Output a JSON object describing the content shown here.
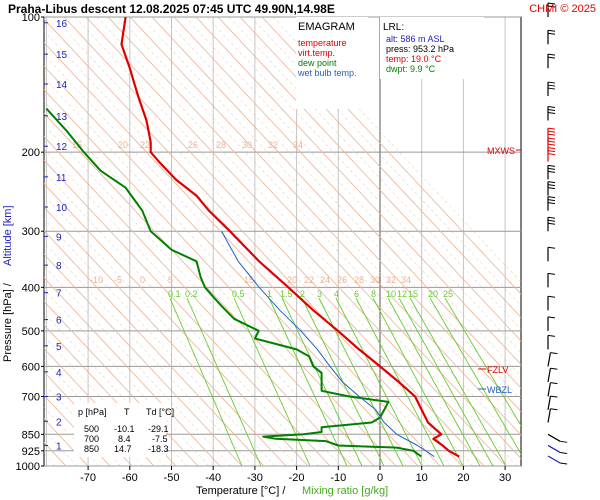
{
  "header": {
    "title": "Praha-Libus   descent   12.08.2025 07:45 UTC  49.90N,14.98E",
    "credit": "CHMI © 2025"
  },
  "legend": {
    "heading": "EMAGRAM",
    "items": [
      {
        "label": "temperature",
        "color": "#e00000"
      },
      {
        "label": "virt.temp.",
        "color": "#e00000"
      },
      {
        "label": "dew point",
        "color": "#008000"
      },
      {
        "label": "wet bulb temp.",
        "color": "#2060c0"
      }
    ]
  },
  "lrl": {
    "heading": "LRL:",
    "alt": "alt: 586 m ASL",
    "press": "press: 953.2 hPa",
    "temp": "temp: 19.0 °C",
    "dwpt": "dwpt: 9.9 °C"
  },
  "levels_table": {
    "headers": [
      "p [hPa]",
      "T",
      "Td [°C]"
    ],
    "rows": [
      [
        "500",
        "-10.1",
        "-29.1"
      ],
      [
        "700",
        "8.4",
        "-7.5"
      ],
      [
        "850",
        "14.7",
        "-18.3"
      ]
    ]
  },
  "markers": {
    "mxws": "MXWS",
    "fzlv": "FZLV",
    "wbzl": "WBZL"
  },
  "axes": {
    "xlabel_temp": "Temperature [°C]  /",
    "xlabel_mix": "Mixing ratio [g/kg]",
    "ylabel_pressure": "Pressure [hPa]  /",
    "ylabel_alt": "Altitude [km]"
  },
  "colors": {
    "temperature": "#e00000",
    "dewpoint": "#008000",
    "wetbulb": "#2060c0",
    "isotherm": "#c4c4c4",
    "dry_adiabat": "#f0b090",
    "mixing_ratio": "#66cc33",
    "altitude": "#2020c0"
  },
  "chart_data": {
    "type": "line",
    "xlim": [
      -80,
      40
    ],
    "ylim_pressure": [
      1000,
      100
    ],
    "pressure_ticks": [
      100,
      200,
      300,
      400,
      500,
      600,
      700,
      850,
      925,
      1000
    ],
    "temp_ticks": [
      -70,
      -60,
      -50,
      -40,
      -30,
      -20,
      -10,
      0,
      10,
      20,
      30
    ],
    "altitude_ticks_km": [
      {
        "km": "1",
        "p": 900
      },
      {
        "km": "2",
        "p": 795
      },
      {
        "km": "3",
        "p": 700
      },
      {
        "km": "4",
        "p": 617
      },
      {
        "km": "5",
        "p": 540
      },
      {
        "km": "6",
        "p": 472
      },
      {
        "km": "7",
        "p": 411
      },
      {
        "km": "8",
        "p": 357
      },
      {
        "km": "9",
        "p": 308
      },
      {
        "km": "10",
        "p": 265
      },
      {
        "km": "11",
        "p": 227
      },
      {
        "km": "12",
        "p": 194
      },
      {
        "km": "13",
        "p": 166
      },
      {
        "km": "14",
        "p": 141
      },
      {
        "km": "15",
        "p": 121
      },
      {
        "km": "16",
        "p": 103
      }
    ],
    "adiabat_labels_top": [
      "15",
      "20",
      "22",
      "26",
      "28",
      "30",
      "32",
      "34"
    ],
    "adiabat_labels_mid": [
      "-10",
      "-5",
      "0",
      "5",
      "15",
      "20",
      "22",
      "24",
      "26",
      "28",
      "30",
      "32",
      "34"
    ],
    "mixing_ratio_labels": [
      "0.1",
      "0.2",
      "0.5",
      "1",
      "1.5",
      "2",
      "3",
      "4",
      "6",
      "8",
      "10",
      "12",
      "15",
      "20",
      "25"
    ],
    "series": [
      {
        "name": "temperature",
        "points": [
          [
            953,
            19
          ],
          [
            925,
            16.5
          ],
          [
            900,
            15
          ],
          [
            870,
            12.8
          ],
          [
            850,
            14.7
          ],
          [
            800,
            11.5
          ],
          [
            750,
            10
          ],
          [
            700,
            8.4
          ],
          [
            650,
            4.5
          ],
          [
            600,
            0
          ],
          [
            550,
            -5
          ],
          [
            500,
            -10.1
          ],
          [
            450,
            -16
          ],
          [
            400,
            -22
          ],
          [
            350,
            -29
          ],
          [
            300,
            -36
          ],
          [
            270,
            -41
          ],
          [
            250,
            -44
          ],
          [
            230,
            -49
          ],
          [
            210,
            -53
          ],
          [
            200,
            -55
          ],
          [
            190,
            -55
          ],
          [
            170,
            -56
          ],
          [
            150,
            -58
          ],
          [
            130,
            -60
          ],
          [
            115,
            -62
          ],
          [
            100,
            -61
          ]
        ]
      },
      {
        "name": "dew point",
        "points": [
          [
            953,
            9.9
          ],
          [
            925,
            8
          ],
          [
            910,
            4
          ],
          [
            900,
            -10
          ],
          [
            880,
            -13
          ],
          [
            870,
            -25
          ],
          [
            860,
            -28
          ],
          [
            850,
            -18.3
          ],
          [
            840,
            -14
          ],
          [
            820,
            -14
          ],
          [
            800,
            -2
          ],
          [
            780,
            0
          ],
          [
            750,
            1
          ],
          [
            720,
            2
          ],
          [
            700,
            -7.5
          ],
          [
            680,
            -14
          ],
          [
            650,
            -14
          ],
          [
            620,
            -14
          ],
          [
            600,
            -16
          ],
          [
            570,
            -17
          ],
          [
            550,
            -20
          ],
          [
            520,
            -30
          ],
          [
            500,
            -29.1
          ],
          [
            470,
            -35
          ],
          [
            440,
            -38
          ],
          [
            420,
            -40
          ],
          [
            400,
            -42
          ],
          [
            380,
            -43
          ],
          [
            350,
            -44
          ],
          [
            330,
            -50
          ],
          [
            300,
            -55
          ],
          [
            270,
            -57
          ],
          [
            240,
            -61
          ],
          [
            220,
            -67
          ],
          [
            200,
            -71
          ],
          [
            180,
            -75
          ],
          [
            160,
            -80
          ]
        ]
      },
      {
        "name": "wet bulb temp.",
        "points": [
          [
            953,
            13
          ],
          [
            925,
            11
          ],
          [
            900,
            9
          ],
          [
            850,
            4
          ],
          [
            800,
            1
          ],
          [
            750,
            -1
          ],
          [
            700,
            -5
          ],
          [
            650,
            -9
          ],
          [
            600,
            -12
          ],
          [
            550,
            -15
          ],
          [
            500,
            -19
          ],
          [
            450,
            -24
          ],
          [
            400,
            -29
          ],
          [
            350,
            -34
          ],
          [
            300,
            -38
          ]
        ]
      }
    ],
    "wind_barbs_pressure": [
      950,
      900,
      850,
      800,
      750,
      700,
      650,
      600,
      550,
      500,
      450,
      400,
      350,
      300,
      270,
      250,
      230,
      210,
      200,
      190,
      170,
      150,
      130,
      115,
      100
    ]
  }
}
